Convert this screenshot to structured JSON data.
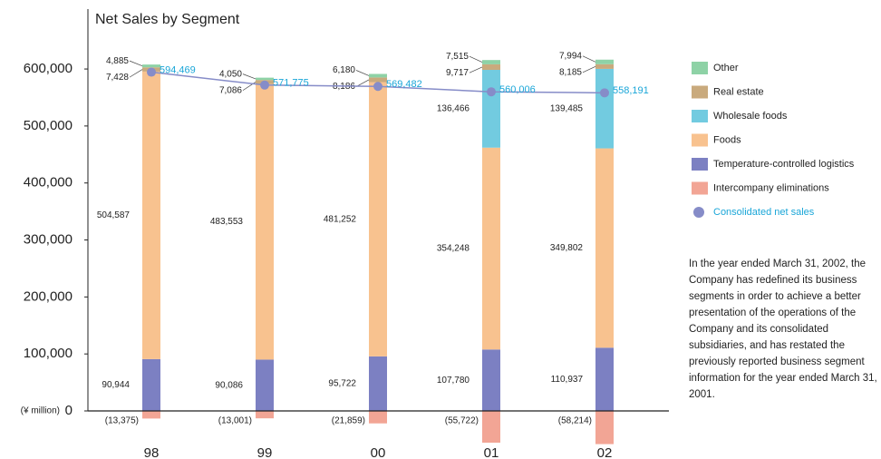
{
  "chart_data": {
    "type": "stacked_bar_line",
    "title": "Net Sales by Segment",
    "unit_label": "(¥ million)",
    "categories": [
      "98",
      "99",
      "00",
      "01",
      "02"
    ],
    "ylim": [
      -60000,
      620000
    ],
    "yticks": [
      {
        "value": 0,
        "label": "0"
      },
      {
        "value": 100000,
        "label": "100,000"
      },
      {
        "value": 200000,
        "label": "200,000"
      },
      {
        "value": 300000,
        "label": "300,000"
      },
      {
        "value": 400000,
        "label": "400,000"
      },
      {
        "value": 500000,
        "label": "500,000"
      },
      {
        "value": 600000,
        "label": "600,000"
      }
    ],
    "series": [
      {
        "name": "Intercompany eliminations",
        "color": "#f2a595",
        "values": [
          -13375,
          -13001,
          -21859,
          -55722,
          -58214
        ],
        "value_labels": [
          "(13,375)",
          "(13,001)",
          "(21,859)",
          "(55,722)",
          "(58,214)"
        ]
      },
      {
        "name": "Temperature-controlled logistics",
        "color": "#7c80c2",
        "values": [
          90944,
          90086,
          95722,
          107780,
          110937
        ],
        "value_labels": [
          "90,944",
          "90,086",
          "95,722",
          "107,780",
          "110,937"
        ]
      },
      {
        "name": "Foods",
        "color": "#f8c28f",
        "values": [
          504587,
          483553,
          481252,
          354248,
          349802
        ],
        "value_labels": [
          "504,587",
          "483,553",
          "481,252",
          "354,248",
          "349,802"
        ]
      },
      {
        "name": "Wholesale foods",
        "color": "#72cbe0",
        "values": [
          null,
          null,
          null,
          136466,
          139485
        ],
        "value_labels": [
          null,
          null,
          null,
          "136,466",
          "139,485"
        ]
      },
      {
        "name": "Real estate",
        "color": "#c9aa7d",
        "values": [
          7428,
          7086,
          8186,
          9717,
          8185
        ],
        "value_labels": [
          "7,428",
          "7,086",
          "8,186",
          "9,717",
          "8,185"
        ]
      },
      {
        "name": "Other",
        "color": "#8ed2a6",
        "values": [
          4885,
          4050,
          6180,
          7515,
          7994
        ],
        "value_labels": [
          "4,885",
          "4,050",
          "6,180",
          "7,515",
          "7,994"
        ]
      }
    ],
    "line_series": {
      "name": "Consolidated net sales",
      "color": "#868cc8",
      "label_color": "#1aa6d8",
      "values": [
        594469,
        571775,
        569482,
        560006,
        558191
      ],
      "value_labels": [
        "594,469",
        "571,775",
        "569,482",
        "560,006",
        "558,191"
      ]
    },
    "legend_order": [
      5,
      4,
      3,
      2,
      1,
      0
    ],
    "note": "In the year ended March 31, 2002, the Company has redefined its business segments in order to achieve a better presentation of the operations of the Company and its consolidated subsidiaries, and has restated the previously reported business segment information for the year ended March 31, 2001."
  }
}
